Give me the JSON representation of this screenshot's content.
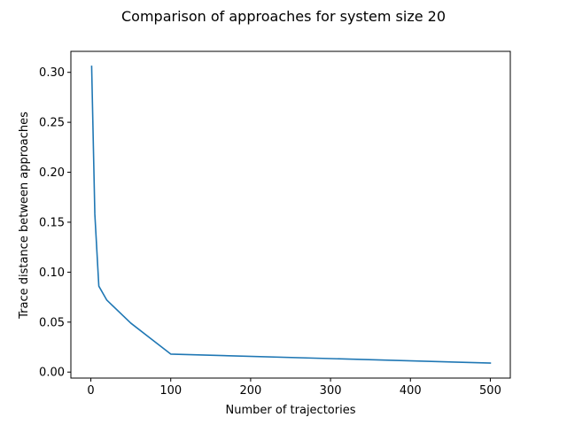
{
  "chart_data": {
    "type": "line",
    "title": "Comparison of approaches for system size 20",
    "xlabel": "Number of trajectories",
    "ylabel": "Trace distance between approaches",
    "xlim": [
      -25,
      525
    ],
    "ylim": [
      -0.006,
      0.321
    ],
    "xticks": [
      0,
      100,
      200,
      300,
      400,
      500
    ],
    "xtick_labels": [
      "0",
      "100",
      "200",
      "300",
      "400",
      "500"
    ],
    "yticks": [
      0.0,
      0.05,
      0.1,
      0.15,
      0.2,
      0.25,
      0.3
    ],
    "ytick_labels": [
      "0.00",
      "0.05",
      "0.10",
      "0.15",
      "0.20",
      "0.25",
      "0.30"
    ],
    "grid": false,
    "series": [
      {
        "color": "#1f77b4",
        "x": [
          1,
          5,
          10,
          20,
          50,
          100,
          500
        ],
        "y": [
          0.306,
          0.158,
          0.086,
          0.072,
          0.049,
          0.018,
          0.009
        ]
      }
    ]
  }
}
